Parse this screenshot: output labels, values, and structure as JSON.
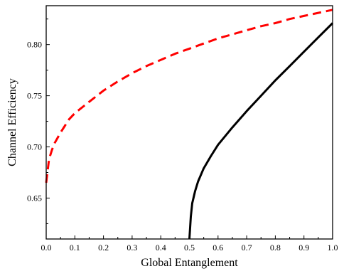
{
  "chart_data": {
    "type": "line",
    "title": "",
    "xlabel": "Global Entanglement",
    "ylabel": "Channel Efficiency",
    "xlim": [
      0.0,
      1.0
    ],
    "ylim": [
      0.61,
      0.838
    ],
    "x_ticks": [
      0.0,
      0.1,
      0.2,
      0.3,
      0.4,
      0.5,
      0.6,
      0.7,
      0.8,
      0.9,
      1.0
    ],
    "x_tick_labels": [
      "0.0",
      "0.1",
      "0.2",
      "0.3",
      "0.4",
      "0.5",
      "0.6",
      "0.7",
      "0.8",
      "0.9",
      "1.0"
    ],
    "y_ticks": [
      0.65,
      0.7,
      0.75,
      0.8
    ],
    "y_tick_labels": [
      "0.65",
      "0.70",
      "0.75",
      "0.80"
    ],
    "grid": false,
    "legend": "none",
    "series": [
      {
        "color": "#ff0000",
        "line_style": "dashed",
        "x": [
          0.0,
          0.01,
          0.02,
          0.03,
          0.05,
          0.08,
          0.1,
          0.15,
          0.2,
          0.25,
          0.3,
          0.35,
          0.4,
          0.45,
          0.5,
          0.55,
          0.6,
          0.65,
          0.7,
          0.75,
          0.8,
          0.85,
          0.9,
          0.95,
          1.0
        ],
        "y": [
          0.665,
          0.688,
          0.697,
          0.704,
          0.714,
          0.727,
          0.733,
          0.744,
          0.755,
          0.764,
          0.772,
          0.779,
          0.785,
          0.791,
          0.796,
          0.801,
          0.806,
          0.81,
          0.814,
          0.818,
          0.821,
          0.825,
          0.828,
          0.831,
          0.834
        ]
      },
      {
        "color": "#000000",
        "line_style": "solid",
        "x": [
          0.5,
          0.505,
          0.51,
          0.52,
          0.53,
          0.55,
          0.575,
          0.6,
          0.65,
          0.7,
          0.75,
          0.8,
          0.85,
          0.9,
          0.95,
          1.0
        ],
        "y": [
          0.61,
          0.632,
          0.645,
          0.657,
          0.666,
          0.679,
          0.691,
          0.702,
          0.719,
          0.735,
          0.75,
          0.765,
          0.779,
          0.793,
          0.807,
          0.821
        ]
      }
    ]
  }
}
